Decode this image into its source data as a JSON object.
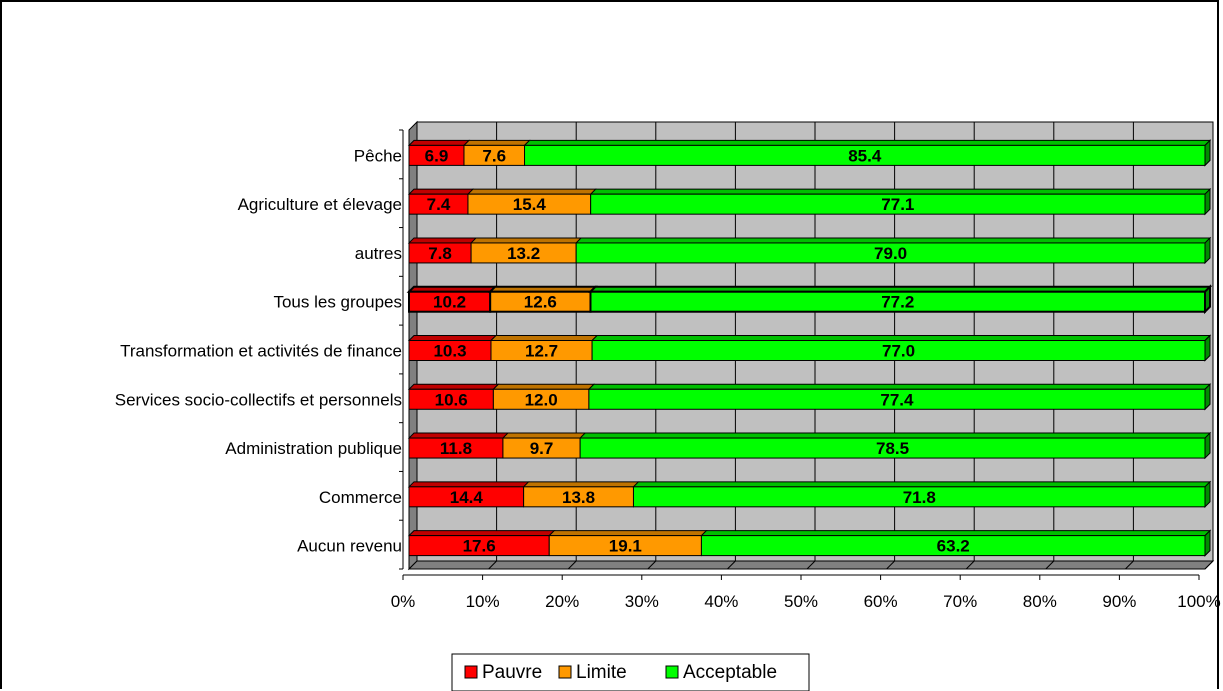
{
  "chart_data": {
    "type": "bar",
    "orientation": "horizontal",
    "stacked": "percent",
    "style": "3d",
    "categories": [
      "Pêche",
      "Agriculture et élevage",
      "autres",
      "Tous les groupes",
      "Transformation et activités de finance",
      "Services socio-collectifs et personnels",
      "Administration publique",
      "Commerce",
      "Aucun revenu"
    ],
    "series": [
      {
        "name": "Pauvre",
        "color": "#ff0000",
        "values": [
          6.9,
          7.4,
          7.8,
          10.2,
          10.3,
          10.6,
          11.8,
          14.4,
          17.6
        ],
        "labels": [
          "6.9",
          "7.4",
          "7.8",
          "10.2",
          "10.3",
          "10.6",
          "11.8",
          "14.4",
          "17.6"
        ]
      },
      {
        "name": "Limite",
        "color": "#ff9900",
        "values": [
          7.6,
          15.4,
          13.2,
          12.6,
          12.7,
          12.0,
          9.7,
          13.8,
          19.1
        ],
        "labels": [
          "7.6",
          "15.4",
          "13.2",
          "12.6",
          "12.7",
          "12.0",
          "9.7",
          "13.8",
          "19.1"
        ]
      },
      {
        "name": "Acceptable",
        "color": "#00ff00",
        "values": [
          85.4,
          77.1,
          79.0,
          77.2,
          77.0,
          77.4,
          78.5,
          71.8,
          63.2
        ],
        "labels": [
          "85.4",
          "77.1",
          "79.0",
          "77.2",
          "77.0",
          "77.4",
          "78.5",
          "71.8",
          "63.2"
        ]
      }
    ],
    "xticks": [
      "0%",
      "10%",
      "20%",
      "30%",
      "40%",
      "50%",
      "60%",
      "70%",
      "80%",
      "90%",
      "100%"
    ],
    "xlim": [
      0,
      100
    ],
    "grid": true,
    "legend_position": "bottom",
    "wall_color": "#c0c0c0",
    "highlighted_category": "Tous les groupes"
  }
}
